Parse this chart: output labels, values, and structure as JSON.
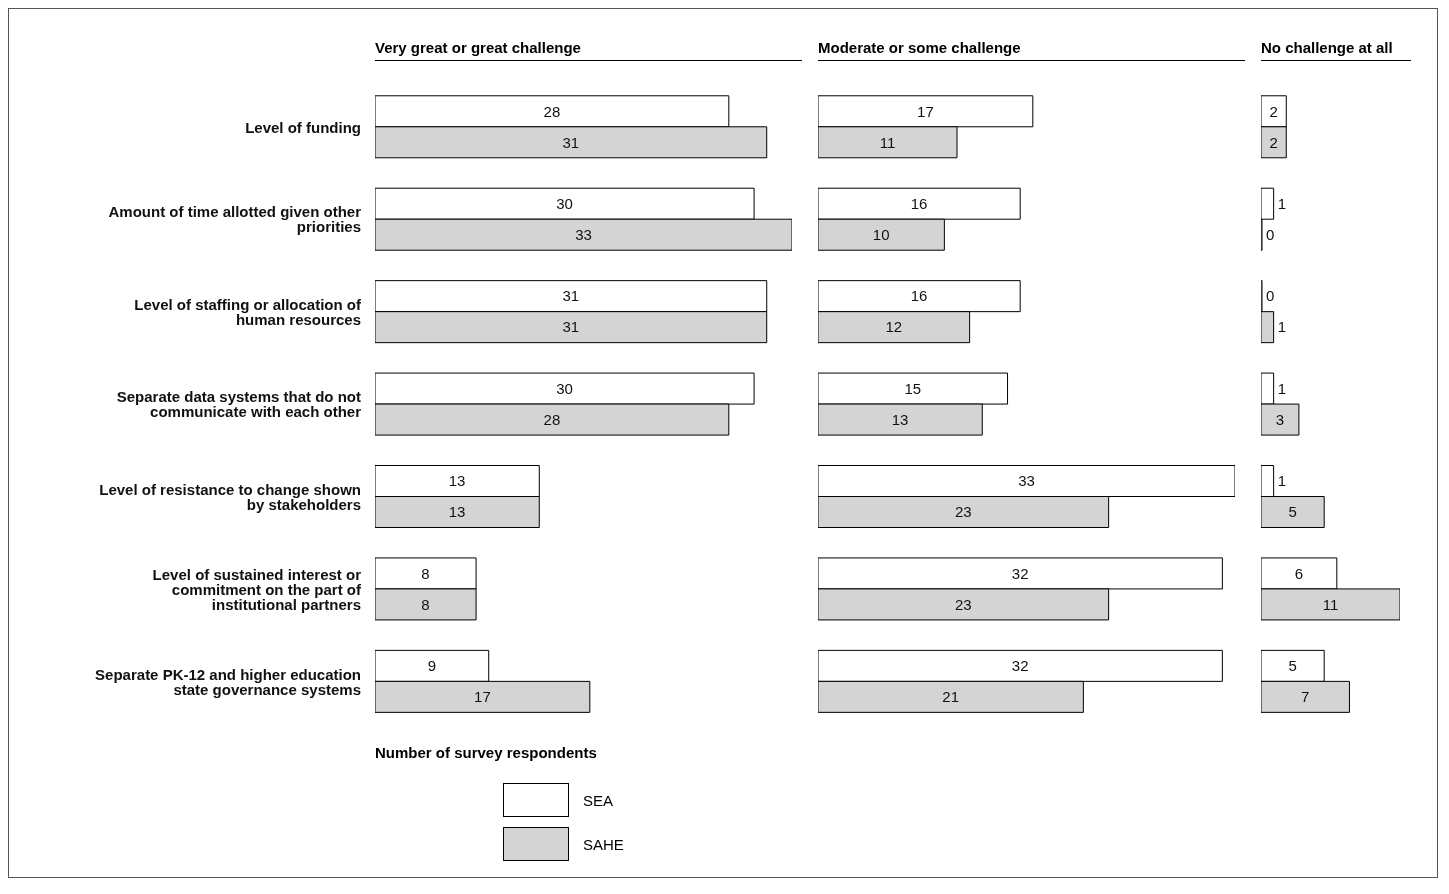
{
  "chart_data": [
    {
      "type": "bar",
      "orientation": "horizontal",
      "title": "Very great or great challenge",
      "xlabel": "Number of survey respondents",
      "categories": [
        "Level of funding",
        "Amount of time allotted given other priorities",
        "Level of staffing or allocation of human resources",
        "Separate data systems that do not communicate with each other",
        "Level of resistance to change shown by stakeholders",
        "Level of sustained interest or commitment on the part of institutional partners",
        "Separate PK-12 and higher education state governance systems"
      ],
      "series": [
        {
          "name": "SEA",
          "color": "#ffffff",
          "values": [
            28,
            30,
            31,
            30,
            13,
            8,
            9
          ]
        },
        {
          "name": "SAHE",
          "color": "#d4d4d4",
          "values": [
            31,
            33,
            31,
            28,
            13,
            8,
            17
          ]
        }
      ],
      "data_labels": true,
      "legend": "bottom",
      "tick_labels": "y",
      "grid": false
    },
    {
      "type": "bar",
      "orientation": "horizontal",
      "title": "Moderate or some challenge",
      "categories": [
        null,
        null,
        null,
        null,
        null,
        null,
        null
      ],
      "series": [
        {
          "color": "#ffffff",
          "values": [
            17,
            16,
            16,
            15,
            33,
            32,
            32
          ]
        },
        {
          "color": "#d4d4d4",
          "values": [
            11,
            10,
            12,
            13,
            23,
            23,
            21
          ]
        }
      ],
      "data_labels": true,
      "tick_labels": false,
      "grid": false
    },
    {
      "type": "bar",
      "orientation": "horizontal",
      "title": "No challenge at all",
      "categories": [
        null,
        null,
        null,
        null,
        null,
        null,
        null
      ],
      "series": [
        {
          "color": "#ffffff",
          "values": [
            2,
            1,
            0,
            1,
            1,
            6,
            5
          ]
        },
        {
          "color": "#d4d4d4",
          "values": [
            2,
            0,
            1,
            3,
            5,
            11,
            7
          ]
        }
      ],
      "data_labels": true,
      "tick_labels": false,
      "grid": false
    }
  ]
}
